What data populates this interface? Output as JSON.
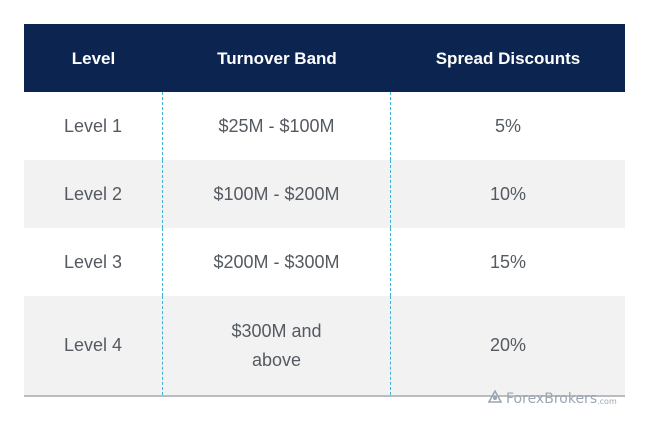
{
  "table": {
    "headers": [
      "Level",
      "Turnover Band",
      "Spread Discounts"
    ],
    "rows": [
      {
        "level": "Level 1",
        "band": "$25M - $100M",
        "discount": "5%"
      },
      {
        "level": "Level 2",
        "band": "$100M - $200M",
        "discount": "10%"
      },
      {
        "level": "Level 3",
        "band": "$200M - $300M",
        "discount": "15%"
      },
      {
        "level": "Level 4",
        "band": "$300M and above",
        "discount": "20%"
      }
    ]
  },
  "watermark": {
    "brand": "ForexBrokers",
    "suffix": ".com",
    "icon": "forexbrokers-logo-icon"
  }
}
